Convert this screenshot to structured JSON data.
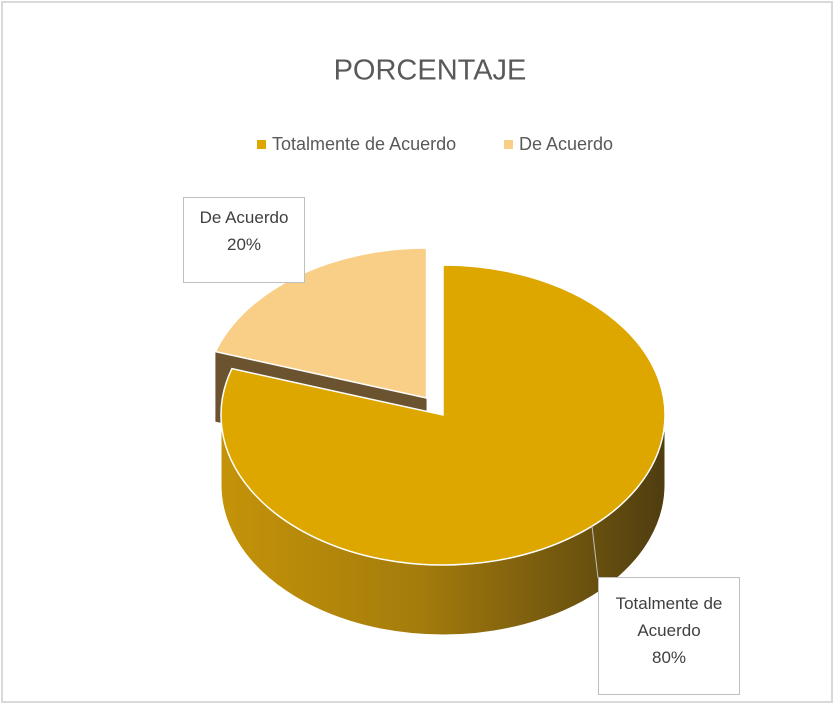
{
  "chart_data": {
    "type": "pie",
    "title": "PORCENTAJE",
    "categories": [
      "Totalmente de Acuerdo",
      "De Acuerdo"
    ],
    "values": [
      80,
      20
    ],
    "value_labels": [
      "80%",
      "20%"
    ],
    "colors": [
      "#dda700",
      "#f9cf87"
    ],
    "legend": "top",
    "three_d": true
  }
}
